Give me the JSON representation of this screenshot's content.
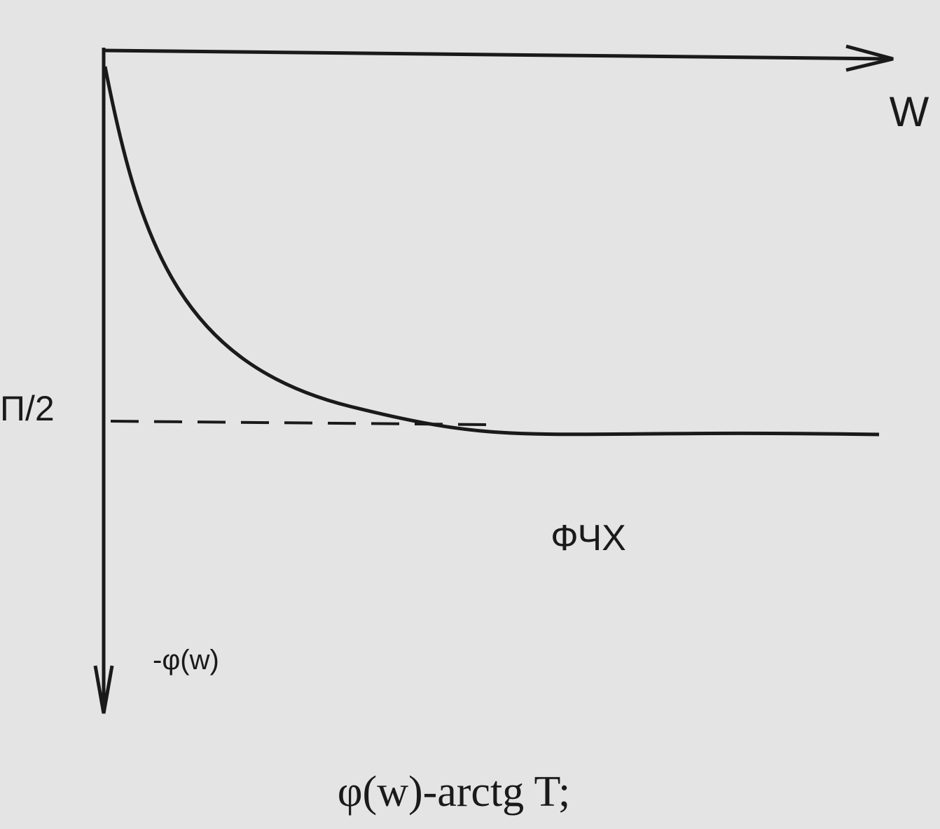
{
  "axes": {
    "x_label": "W",
    "y_label": "-φ(w)",
    "asymptote_label": "П/2"
  },
  "curve_label": "ФЧХ",
  "caption": "φ(w)-arctg T;"
}
